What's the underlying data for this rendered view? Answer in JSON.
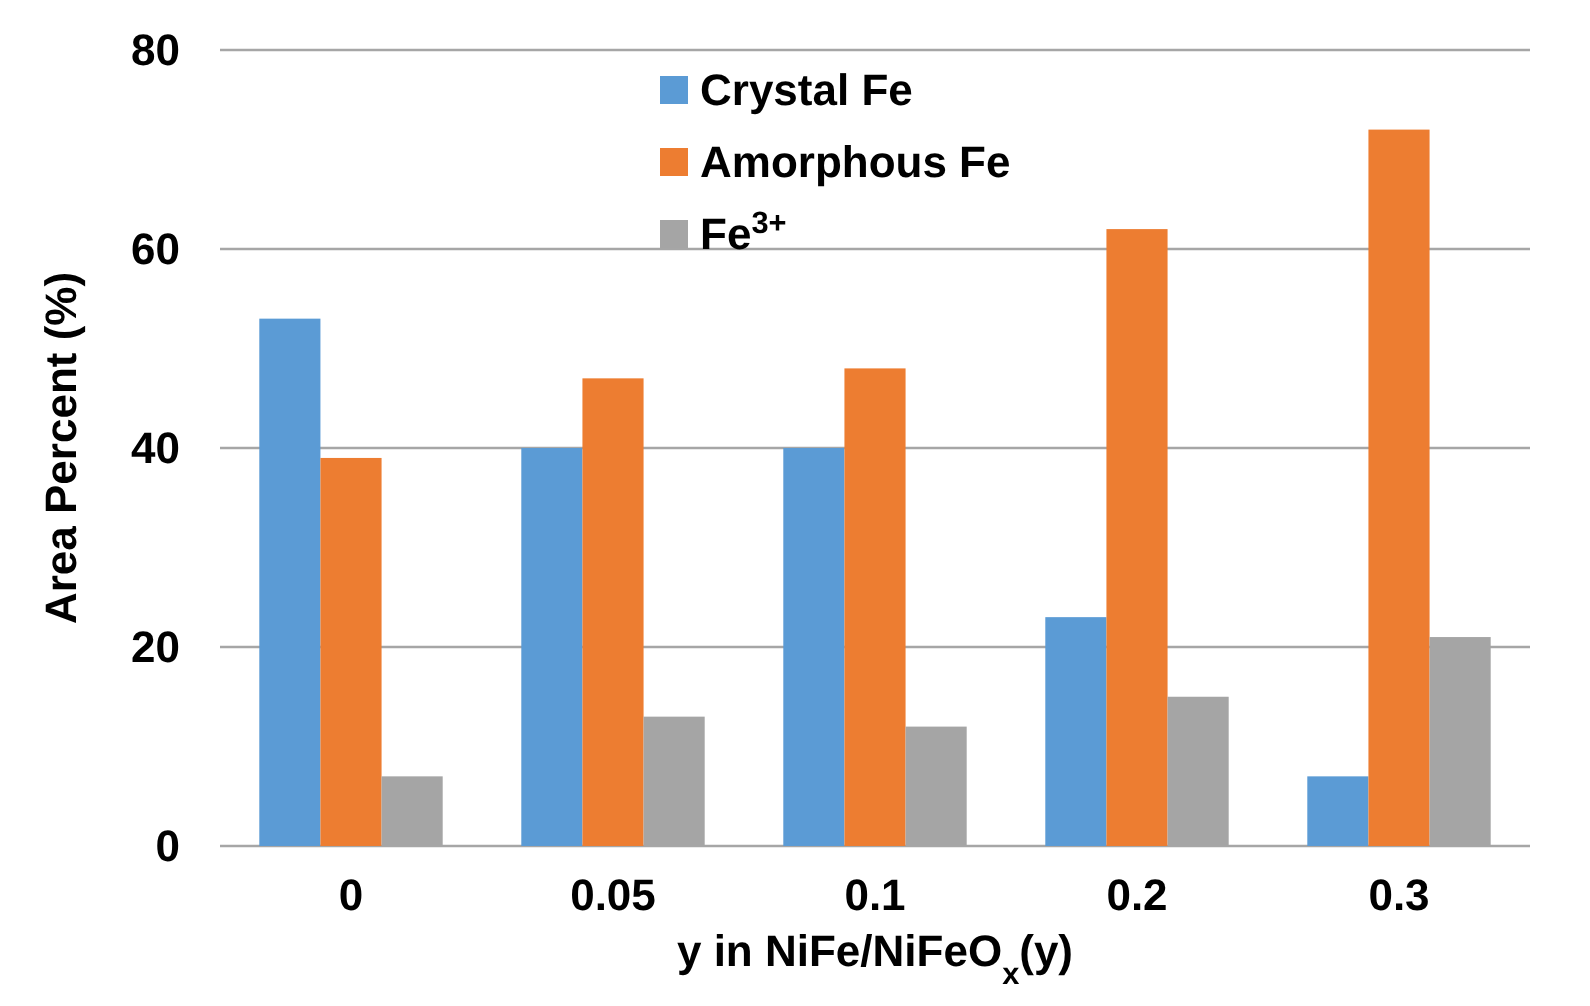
{
  "chart_data": {
    "type": "bar",
    "categories": [
      "0",
      "0.05",
      "0.1",
      "0.2",
      "0.3"
    ],
    "series": [
      {
        "name": "Crystal Fe",
        "color": "#5b9bd5",
        "values": [
          53,
          40,
          40,
          23,
          7
        ]
      },
      {
        "name": "Amorphous Fe",
        "color": "#ed7d31",
        "values": [
          39,
          47,
          48,
          62,
          72
        ]
      },
      {
        "name": "Fe$^{3+}$",
        "color": "#a5a5a5",
        "values": [
          7,
          13,
          12,
          15,
          21
        ]
      }
    ],
    "xlabel": "y in NiFe/NiFeO$_{x}$(y)",
    "ylabel": "Area Percent (%)",
    "ylim": [
      0,
      80
    ],
    "yticks": [
      0,
      20,
      40,
      60,
      80
    ],
    "grid": "y",
    "legend": "top"
  }
}
